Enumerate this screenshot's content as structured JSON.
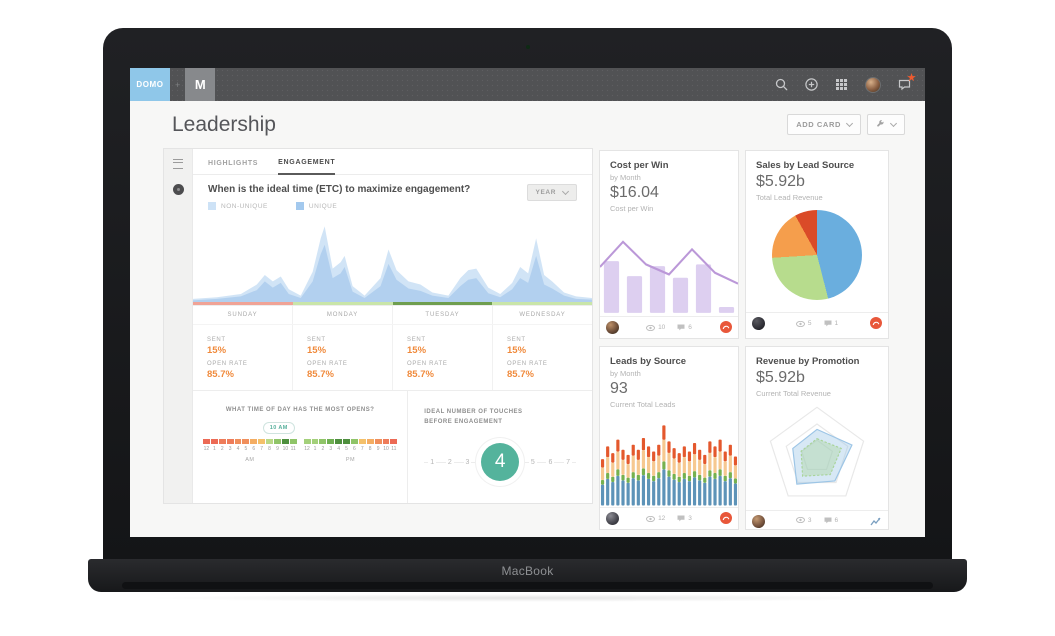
{
  "device": {
    "label": "MacBook"
  },
  "navbar": {
    "domo_logo": "DOMO",
    "plus": "+",
    "workspace_initial": "M",
    "icons": [
      "search-icon",
      "add-icon",
      "apps-grid-icon",
      "profile-avatar",
      "notifications-icon"
    ]
  },
  "header": {
    "title": "Leadership",
    "add_card_label": "ADD CARD"
  },
  "main_card": {
    "tabs": [
      {
        "label": "HIGHLIGHTS",
        "active": false
      },
      {
        "label": "ENGAGEMENT",
        "active": true
      }
    ],
    "question": "When is the ideal time (ETC) to maximize engagement?",
    "legend": [
      {
        "label": "NON-UNIQUE",
        "color": "#cde2f6"
      },
      {
        "label": "UNIQUE",
        "color": "#a3c9ee"
      }
    ],
    "range_selector": "YEAR",
    "days": [
      {
        "name": "SUNDAY",
        "sent_label": "SENT",
        "sent": "15%",
        "open_rate_label": "OPEN RATE",
        "open_rate": "85.7%",
        "strip_color": "#f0a396"
      },
      {
        "name": "MONDAY",
        "sent_label": "SENT",
        "sent": "15%",
        "open_rate_label": "OPEN RATE",
        "open_rate": "85.7%",
        "strip_color": "#c9e5a9"
      },
      {
        "name": "TUESDAY",
        "sent_label": "SENT",
        "sent": "15%",
        "open_rate_label": "OPEN RATE",
        "open_rate": "85.7%",
        "strip_color": "#6f9e4f"
      },
      {
        "name": "WEDNESDAY",
        "sent_label": "SENT",
        "sent": "15%",
        "open_rate_label": "OPEN RATE",
        "open_rate": "85.7%",
        "strip_color": "#c9e5a9"
      }
    ],
    "time_of_day": {
      "title": "WHAT TIME OF DAY HAS THE MOST OPENS?",
      "callout": "10 AM",
      "am_label": "AM",
      "pm_label": "PM",
      "hours": [
        "12",
        "1",
        "2",
        "3",
        "4",
        "5",
        "6",
        "7",
        "8",
        "9",
        "10",
        "11"
      ],
      "segment_colors": [
        "#ec6a55",
        "#ec6a55",
        "#ee7c5a",
        "#ee7c5a",
        "#f08f5c",
        "#f08f5c",
        "#f4ad62",
        "#f4c06a",
        "#b9d886",
        "#8fc468",
        "#4e8f3e",
        "#8fc468",
        "#a3d07a",
        "#a3d07a",
        "#8fc468",
        "#6faf52",
        "#4e8f3e",
        "#4e8f3e",
        "#8fc468",
        "#f4c06a",
        "#f4ad62",
        "#f08f5c",
        "#ee7c5a",
        "#ec6a55"
      ]
    },
    "touches": {
      "title": "IDEAL NUMBER OF TOUCHES BEFORE ENGAGEMENT",
      "numbers": [
        "1",
        "2",
        "3",
        "4",
        "5",
        "6",
        "7"
      ],
      "highlight": "4"
    }
  },
  "cards": [
    {
      "title": "Cost per Win",
      "subtitle": "by Month",
      "value": "$16.04",
      "value_label": "Cost per Win",
      "views": "10",
      "comments": "6"
    },
    {
      "title": "Sales by Lead Source",
      "subtitle": "",
      "value": "$5.92b",
      "value_label": "Total Lead Revenue",
      "views": "5",
      "comments": "1"
    },
    {
      "title": "Leads by Source",
      "subtitle": "by Month",
      "value": "93",
      "value_label": "Current Total Leads",
      "views": "12",
      "comments": "3"
    },
    {
      "title": "Revenue by Promotion",
      "subtitle": "",
      "value": "$5.92b",
      "value_label": "Current Total Revenue",
      "views": "3",
      "comments": "6"
    }
  ],
  "colors": {
    "accent_orange": "#f08a3c",
    "domo_orange": "#e8573a",
    "teal": "#54b39c",
    "navbar": "#515254"
  },
  "chart_data": [
    {
      "id": "engagement-area",
      "type": "area",
      "title": "When is the ideal time (ETC) to maximize engagement?",
      "x_categories": [
        "SUNDAY",
        "MONDAY",
        "TUESDAY",
        "WEDNESDAY"
      ],
      "legend_position": "top-left",
      "series": [
        {
          "name": "NON-UNIQUE",
          "color": "#cfe3f6",
          "points": [
            [
              0,
              0.04
            ],
            [
              6,
              0.06
            ],
            [
              12,
              0.1
            ],
            [
              16,
              0.22
            ],
            [
              18,
              0.34
            ],
            [
              20,
              0.26
            ],
            [
              22,
              0.32
            ],
            [
              24,
              0.16
            ],
            [
              27,
              0.08
            ],
            [
              30,
              0.38
            ],
            [
              32,
              0.8
            ],
            [
              33,
              0.95
            ],
            [
              35,
              0.42
            ],
            [
              37,
              0.5
            ],
            [
              38,
              0.58
            ],
            [
              40,
              0.2
            ],
            [
              43,
              0.08
            ],
            [
              47,
              0.3
            ],
            [
              49,
              0.66
            ],
            [
              51,
              0.4
            ],
            [
              54,
              0.26
            ],
            [
              57,
              0.22
            ],
            [
              60,
              0.12
            ],
            [
              64,
              0.08
            ],
            [
              67,
              0.3
            ],
            [
              69,
              0.4
            ],
            [
              71,
              0.42
            ],
            [
              74,
              0.18
            ],
            [
              77,
              0.1
            ],
            [
              80,
              0.24
            ],
            [
              82,
              0.44
            ],
            [
              84,
              0.36
            ],
            [
              86,
              0.8
            ],
            [
              88,
              0.34
            ],
            [
              90,
              0.26
            ],
            [
              93,
              0.12
            ],
            [
              96,
              0.07
            ],
            [
              100,
              0.05
            ]
          ]
        },
        {
          "name": "UNIQUE",
          "color": "#aecdee",
          "points": [
            [
              0,
              0.02
            ],
            [
              6,
              0.04
            ],
            [
              12,
              0.07
            ],
            [
              16,
              0.15
            ],
            [
              18,
              0.26
            ],
            [
              20,
              0.18
            ],
            [
              22,
              0.24
            ],
            [
              24,
              0.1
            ],
            [
              27,
              0.05
            ],
            [
              30,
              0.26
            ],
            [
              32,
              0.6
            ],
            [
              33,
              0.72
            ],
            [
              35,
              0.3
            ],
            [
              37,
              0.36
            ],
            [
              38,
              0.44
            ],
            [
              40,
              0.13
            ],
            [
              43,
              0.05
            ],
            [
              47,
              0.2
            ],
            [
              49,
              0.48
            ],
            [
              51,
              0.28
            ],
            [
              54,
              0.17
            ],
            [
              57,
              0.14
            ],
            [
              60,
              0.08
            ],
            [
              64,
              0.05
            ],
            [
              67,
              0.2
            ],
            [
              69,
              0.28
            ],
            [
              71,
              0.3
            ],
            [
              74,
              0.11
            ],
            [
              77,
              0.06
            ],
            [
              80,
              0.16
            ],
            [
              82,
              0.3
            ],
            [
              84,
              0.24
            ],
            [
              86,
              0.58
            ],
            [
              88,
              0.22
            ],
            [
              90,
              0.17
            ],
            [
              93,
              0.08
            ],
            [
              96,
              0.04
            ],
            [
              100,
              0.03
            ]
          ]
        }
      ]
    },
    {
      "id": "cost-per-win-chart",
      "type": "bar-line",
      "title": "Cost per Win by Month",
      "bar_color": "#ddcff0",
      "line_color": "#bb98d8",
      "bars": [
        0.62,
        0.44,
        0.56,
        0.42,
        0.58,
        0.07
      ],
      "line": [
        0.55,
        0.85,
        0.58,
        0.46,
        0.76,
        0.48,
        0.35
      ]
    },
    {
      "id": "sales-pie",
      "type": "pie",
      "title": "Sales by Lead Source",
      "slices": [
        {
          "value": 46,
          "color": "#6aaede"
        },
        {
          "value": 28,
          "color": "#b7dc8d"
        },
        {
          "value": 18,
          "color": "#f59e4c"
        },
        {
          "value": 8,
          "color": "#da4b28"
        }
      ]
    },
    {
      "id": "leads-stacked",
      "type": "stacked-bar",
      "title": "Leads by Source by Month",
      "segment_colors": [
        "#5d93b8",
        "#76b14f",
        "#f6c890",
        "#e4582d"
      ],
      "segment_fractions": [
        0.45,
        0.1,
        0.27,
        0.18
      ],
      "totals": [
        0.55,
        0.7,
        0.62,
        0.78,
        0.66,
        0.6,
        0.72,
        0.66,
        0.8,
        0.7,
        0.64,
        0.72,
        0.95,
        0.76,
        0.68,
        0.62,
        0.7,
        0.64,
        0.74,
        0.66,
        0.6,
        0.76,
        0.7,
        0.78,
        0.64,
        0.72,
        0.58
      ]
    },
    {
      "id": "revenue-radar",
      "type": "radar",
      "title": "Revenue by Promotion",
      "axes": 5,
      "rings": [
        1,
        0.66,
        0.33
      ],
      "series": [
        {
          "color": "#9cc5e6",
          "values": [
            0.55,
            0.75,
            0.62,
            0.7,
            0.52
          ]
        },
        {
          "color": "#a9d49a",
          "values": [
            0.36,
            0.52,
            0.46,
            0.5,
            0.34
          ]
        }
      ]
    }
  ]
}
